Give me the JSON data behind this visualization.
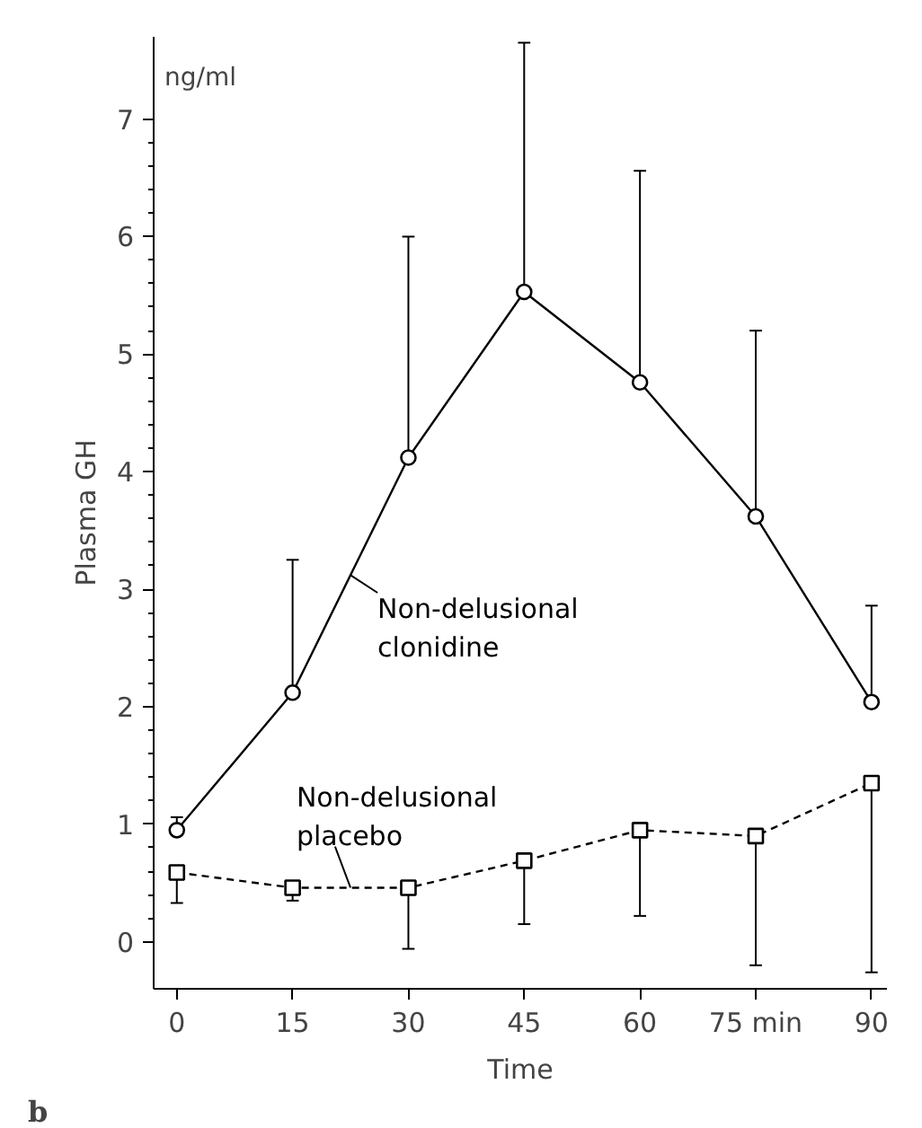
{
  "chart_data": {
    "type": "line",
    "xlabel": "Time",
    "ylabel": "Plasma GH",
    "x": [
      0,
      15,
      30,
      45,
      60,
      75,
      90
    ],
    "xlim": [
      -3,
      92
    ],
    "xticks": [
      0,
      15,
      30,
      45,
      60,
      {
        "value": 75,
        "label": "75 min"
      },
      90
    ],
    "ylim": [
      -0.4,
      7.7
    ],
    "yticks": [
      0,
      1,
      2,
      3,
      4,
      5,
      6,
      7
    ],
    "series": [
      {
        "name": "Non-delusional clonidine",
        "color": "#000000",
        "marker": "circle",
        "line_style": "solid",
        "values": [
          0.95,
          2.12,
          4.12,
          5.53,
          4.76,
          3.62,
          2.04
        ],
        "errors": [
          [
            0.95,
            1.06
          ],
          [
            2.12,
            3.25
          ],
          [
            4.12,
            6.0
          ],
          [
            5.53,
            7.65
          ],
          [
            4.76,
            6.56
          ],
          [
            3.62,
            5.2
          ],
          [
            2.04,
            2.86
          ]
        ]
      },
      {
        "name": "Non-delusional placebo",
        "color": "#000000",
        "marker": "square",
        "line_style": "dashed",
        "values": [
          0.59,
          0.46,
          0.46,
          0.69,
          0.95,
          0.9,
          1.35
        ],
        "errors": [
          [
            0.33,
            0.59
          ],
          [
            0.35,
            0.46
          ],
          [
            -0.06,
            0.46
          ],
          [
            0.15,
            0.69
          ],
          [
            0.22,
            0.95
          ],
          [
            -0.2,
            0.9
          ],
          [
            -0.26,
            1.35
          ]
        ]
      }
    ],
    "annotations": [
      "ng/ml",
      "b"
    ],
    "grid": false
  }
}
